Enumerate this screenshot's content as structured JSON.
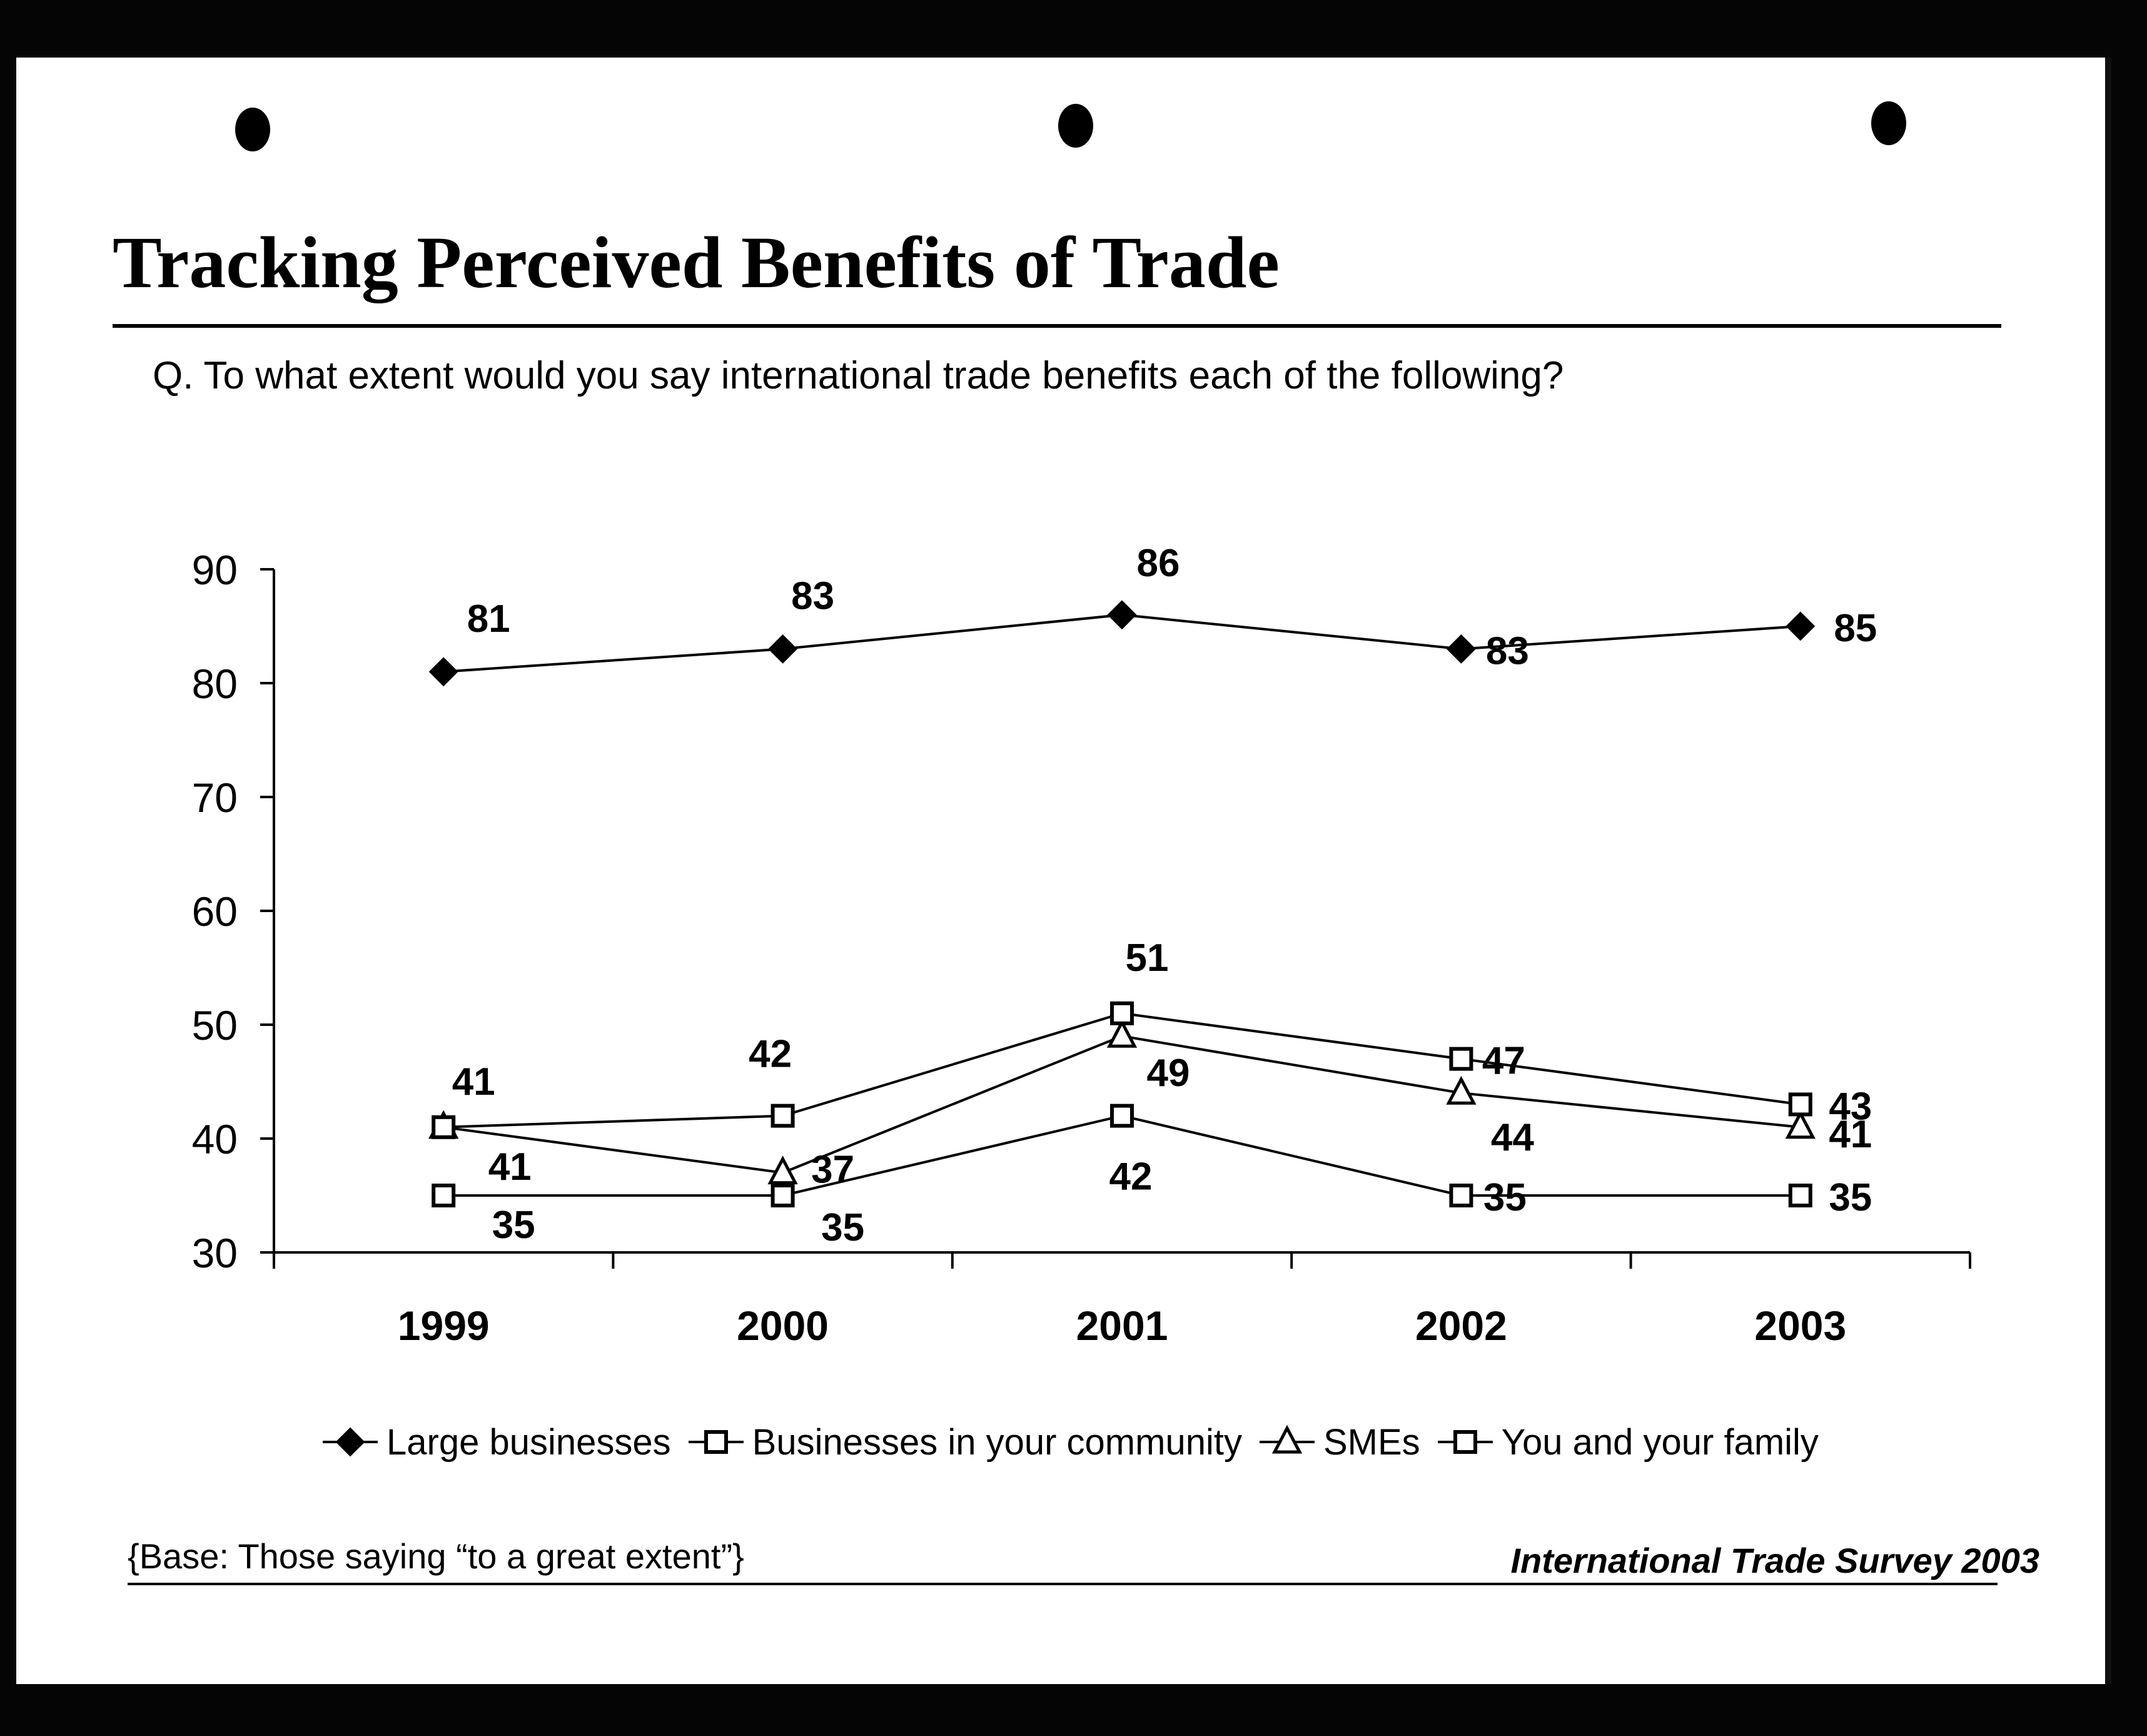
{
  "title": "Tracking Perceived Benefits of Trade",
  "question": "Q.  To what extent would you say international trade benefits each of the following?",
  "base_note": "{Base: Those saying “to a great extent”}",
  "source": "International Trade Survey 2003",
  "chart_data": {
    "type": "line",
    "x": [
      "1999",
      "2000",
      "2001",
      "2002",
      "2003"
    ],
    "ylim": [
      30,
      90
    ],
    "yticks": [
      30,
      40,
      50,
      60,
      70,
      80,
      90
    ],
    "grid": false,
    "legend_position": "bottom",
    "series": [
      {
        "name": "Large businesses",
        "marker": "diamond-filled",
        "values": [
          81,
          83,
          86,
          83,
          85
        ]
      },
      {
        "name": "Businesses in your community",
        "marker": "square-open",
        "values": [
          41,
          42,
          51,
          47,
          43
        ]
      },
      {
        "name": "SMEs",
        "marker": "triangle-open",
        "values": [
          41,
          37,
          49,
          44,
          41
        ]
      },
      {
        "name": "You and your family",
        "marker": "square-open",
        "values": [
          35,
          35,
          42,
          35,
          35
        ]
      }
    ]
  }
}
